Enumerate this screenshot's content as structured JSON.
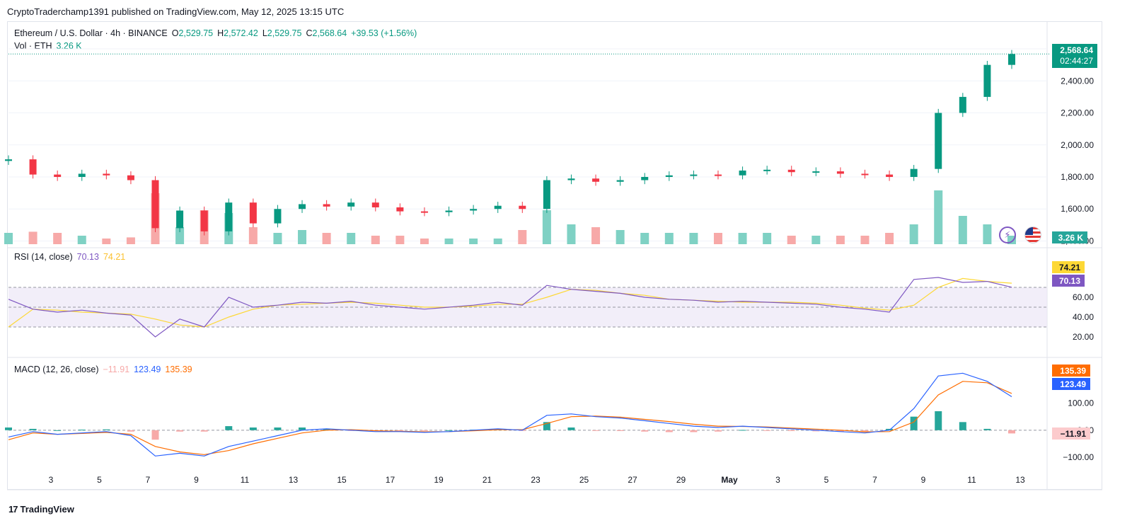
{
  "header": {
    "published": "CryptoTraderchamp1391 published on TradingView.com, May 12, 2025 13:15 UTC"
  },
  "main_legend": {
    "symbol": "Ethereum / U.S. Dollar · 4h · BINANCE",
    "o_label": "O",
    "o": "2,529.75",
    "h_label": "H",
    "h": "2,572.42",
    "l_label": "L",
    "l": "2,529.75",
    "c_label": "C",
    "c": "2,568.64",
    "change": "+39.53 (+1.56%)",
    "vol_label": "Vol · ETH",
    "vol": "3.26 K"
  },
  "price_axis": {
    "ticks": [
      "2,600.00",
      "2,400.00",
      "2,200.00",
      "2,000.00",
      "1,800.00",
      "1,600.00",
      "1,400.00"
    ]
  },
  "price_tag": {
    "price": "2,568.64",
    "countdown": "02:44:27",
    "volume": "3.26 K"
  },
  "rsi": {
    "label": "RSI (14, close)",
    "value": "70.13",
    "ma": "74.21",
    "ticks": [
      "60.00",
      "40.00",
      "20.00"
    ]
  },
  "macd": {
    "label": "MACD (12, 26, close)",
    "hist": "−11.91",
    "macd": "123.49",
    "signal": "135.39",
    "ticks": [
      "100.00",
      "0.00",
      "−100.00"
    ]
  },
  "x_axis": {
    "ticks": [
      "3",
      "5",
      "7",
      "9",
      "11",
      "13",
      "15",
      "17",
      "19",
      "21",
      "23",
      "25",
      "27",
      "29",
      "May",
      "3",
      "5",
      "7",
      "9",
      "11",
      "13"
    ]
  },
  "footer": {
    "brand": "TradingView"
  },
  "colors": {
    "up": "#089981",
    "down": "#f23645",
    "rsi": "#7e57c2",
    "rsi_ma": "#fdd835",
    "macd": "#2962ff",
    "signal": "#ff6d00"
  },
  "chart_data": {
    "type": "candlestick",
    "symbol": "ETHUSD",
    "interval": "4h",
    "x": [
      "Apr 1",
      "Apr 2",
      "Apr 3",
      "Apr 4",
      "Apr 5",
      "Apr 6",
      "Apr 7",
      "Apr 8",
      "Apr 9",
      "Apr 10",
      "Apr 11",
      "Apr 12",
      "Apr 13",
      "Apr 14",
      "Apr 15",
      "Apr 16",
      "Apr 17",
      "Apr 18",
      "Apr 19",
      "Apr 20",
      "Apr 21",
      "Apr 22",
      "Apr 23",
      "Apr 24",
      "Apr 25",
      "Apr 26",
      "Apr 27",
      "Apr 28",
      "Apr 29",
      "Apr 30",
      "May 1",
      "May 2",
      "May 3",
      "May 4",
      "May 5",
      "May 6",
      "May 7",
      "May 8",
      "May 9",
      "May 10",
      "May 11",
      "May 12"
    ],
    "close": [
      1910,
      1815,
      1800,
      1820,
      1810,
      1780,
      1480,
      1590,
      1460,
      1640,
      1510,
      1600,
      1630,
      1615,
      1640,
      1610,
      1585,
      1580,
      1590,
      1600,
      1620,
      1600,
      1780,
      1790,
      1770,
      1780,
      1800,
      1810,
      1815,
      1810,
      1840,
      1845,
      1830,
      1835,
      1820,
      1815,
      1800,
      1850,
      2200,
      2300,
      2500,
      2568
    ],
    "volume_level": [
      0.2,
      0.22,
      0.2,
      0.15,
      0.1,
      0.12,
      0.9,
      0.3,
      0.6,
      0.55,
      0.3,
      0.2,
      0.25,
      0.2,
      0.2,
      0.15,
      0.15,
      0.1,
      0.1,
      0.1,
      0.1,
      0.25,
      0.6,
      0.35,
      0.3,
      0.25,
      0.2,
      0.2,
      0.2,
      0.2,
      0.2,
      0.2,
      0.15,
      0.15,
      0.15,
      0.15,
      0.2,
      0.35,
      0.95,
      0.5,
      0.35,
      0.15
    ],
    "rsi": [
      58,
      48,
      45,
      47,
      44,
      42,
      20,
      38,
      30,
      60,
      50,
      52,
      55,
      54,
      56,
      52,
      50,
      48,
      50,
      52,
      55,
      52,
      72,
      68,
      66,
      64,
      60,
      58,
      57,
      55,
      56,
      55,
      54,
      53,
      50,
      48,
      45,
      78,
      80,
      75,
      76,
      70.13
    ],
    "rsi_ma": [
      30,
      48,
      47,
      45,
      44,
      43,
      38,
      32,
      30,
      40,
      48,
      52,
      53,
      54,
      55,
      54,
      52,
      50,
      50,
      51,
      53,
      53,
      60,
      68,
      67,
      64,
      62,
      58,
      57,
      56,
      55,
      55,
      55,
      54,
      52,
      49,
      47,
      52,
      70,
      79,
      76,
      74.21
    ],
    "macd": [
      -25,
      -5,
      -15,
      -10,
      -5,
      -20,
      -95,
      -85,
      -95,
      -60,
      -40,
      -20,
      0,
      5,
      0,
      -5,
      -5,
      -8,
      -5,
      0,
      5,
      0,
      55,
      60,
      50,
      45,
      35,
      25,
      15,
      10,
      15,
      10,
      5,
      0,
      -5,
      -10,
      0,
      80,
      200,
      210,
      180,
      123.49
    ],
    "signal": [
      -35,
      -10,
      -15,
      -12,
      -8,
      -15,
      -60,
      -80,
      -90,
      -75,
      -50,
      -30,
      -10,
      0,
      2,
      -2,
      -4,
      -6,
      -5,
      -2,
      2,
      2,
      25,
      50,
      52,
      48,
      40,
      32,
      22,
      15,
      14,
      12,
      8,
      4,
      0,
      -6,
      -5,
      30,
      130,
      180,
      175,
      135.39
    ],
    "y_range_price": [
      1380,
      2640
    ],
    "y_range_rsi": [
      10,
      90
    ],
    "y_range_macd": [
      -110,
      190
    ]
  }
}
